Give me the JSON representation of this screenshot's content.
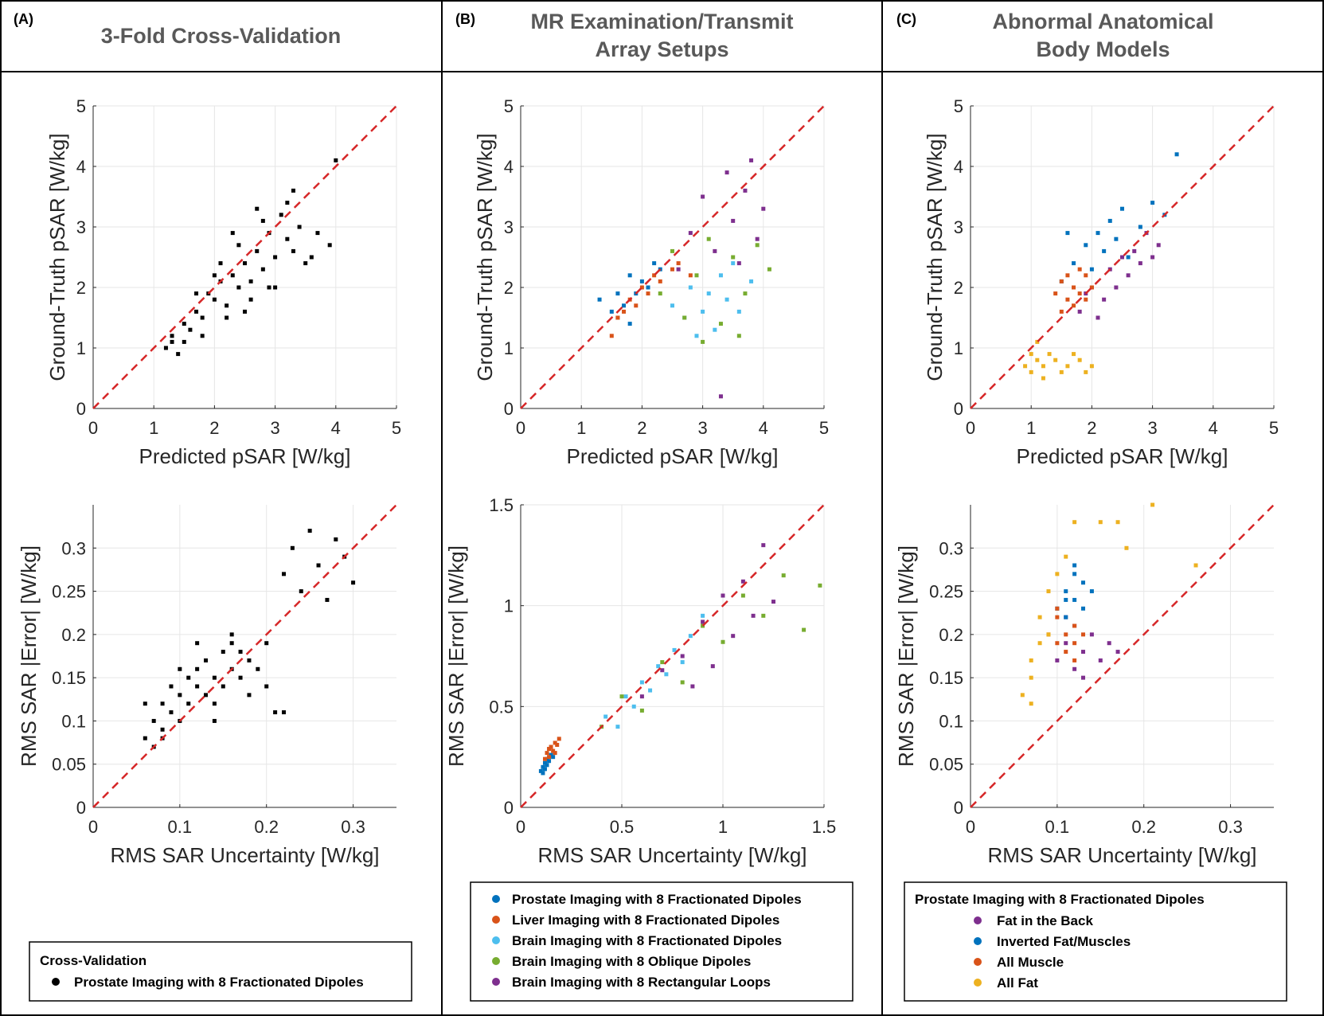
{
  "panels": [
    {
      "label": "(A)",
      "title": "3-Fold Cross-Validation"
    },
    {
      "label": "(B)",
      "title": "MR Examination/Transmit Array Setups"
    },
    {
      "label": "(C)",
      "title": "Abnormal Anatomical Body Models"
    }
  ],
  "chart_data": [
    {
      "type": "scatter",
      "xlabel": "Predicted pSAR [W/kg]",
      "ylabel": "Ground-Truth pSAR [W/kg]",
      "xlim": [
        0,
        5
      ],
      "ylim": [
        0,
        5
      ],
      "xticks": [
        0,
        1,
        2,
        3,
        4,
        5
      ],
      "yticks": [
        0,
        1,
        2,
        3,
        4,
        5
      ],
      "grid": true,
      "series": [
        {
          "color": "#000000",
          "x": [
            1.2,
            1.3,
            1.4,
            1.5,
            1.6,
            1.7,
            1.8,
            1.9,
            2.0,
            2.1,
            2.2,
            2.3,
            2.4,
            2.5,
            2.6,
            2.7,
            2.8,
            2.9,
            3.0,
            3.1,
            3.2,
            3.3,
            3.4,
            3.5,
            3.6,
            3.7,
            1.5,
            1.8,
            2.0,
            2.2,
            2.4,
            2.6,
            2.8,
            3.0,
            3.2,
            1.3,
            1.7,
            2.1,
            2.5,
            2.9,
            3.3,
            3.9,
            4.0,
            2.3,
            2.7
          ],
          "values": [
            1.0,
            1.1,
            0.9,
            1.4,
            1.3,
            1.6,
            1.5,
            1.9,
            1.8,
            2.1,
            1.7,
            2.2,
            2.0,
            2.4,
            2.1,
            2.6,
            2.3,
            2.9,
            2.5,
            3.2,
            2.8,
            2.6,
            3.0,
            2.4,
            2.5,
            2.9,
            1.1,
            1.2,
            2.2,
            1.5,
            2.7,
            1.8,
            3.1,
            2.0,
            3.4,
            1.2,
            1.9,
            2.4,
            1.6,
            2.0,
            3.6,
            2.7,
            4.1,
            2.9,
            3.3
          ]
        }
      ]
    },
    {
      "type": "scatter",
      "xlabel": "RMS SAR Uncertainty [W/kg]",
      "ylabel": "RMS SAR |Error| [W/kg]",
      "xlim": [
        0,
        0.35
      ],
      "ylim": [
        0,
        0.35
      ],
      "xticks": [
        0,
        0.1,
        0.2,
        0.3
      ],
      "yticks": [
        0,
        0.05,
        0.1,
        0.15,
        0.2,
        0.25,
        0.3
      ],
      "grid": true,
      "legend_title": "Cross-Validation",
      "series": [
        {
          "name": "Prostate Imaging with 8 Fractionated Dipoles",
          "color": "#000000",
          "x": [
            0.06,
            0.07,
            0.07,
            0.08,
            0.08,
            0.09,
            0.09,
            0.1,
            0.1,
            0.11,
            0.11,
            0.12,
            0.12,
            0.13,
            0.13,
            0.14,
            0.14,
            0.15,
            0.15,
            0.16,
            0.16,
            0.17,
            0.17,
            0.18,
            0.19,
            0.2,
            0.21,
            0.22,
            0.06,
            0.08,
            0.1,
            0.12,
            0.14,
            0.16,
            0.18,
            0.2,
            0.22,
            0.23,
            0.24,
            0.25,
            0.26,
            0.27,
            0.28,
            0.29,
            0.3
          ],
          "values": [
            0.08,
            0.1,
            0.07,
            0.12,
            0.09,
            0.11,
            0.14,
            0.1,
            0.13,
            0.15,
            0.12,
            0.14,
            0.16,
            0.13,
            0.17,
            0.15,
            0.12,
            0.18,
            0.14,
            0.16,
            0.19,
            0.15,
            0.18,
            0.17,
            0.16,
            0.14,
            0.11,
            0.11,
            0.12,
            0.08,
            0.16,
            0.19,
            0.1,
            0.2,
            0.13,
            0.19,
            0.27,
            0.3,
            0.25,
            0.32,
            0.28,
            0.24,
            0.31,
            0.29,
            0.26
          ]
        }
      ]
    },
    {
      "type": "scatter",
      "xlabel": "Predicted pSAR [W/kg]",
      "ylabel": "Ground-Truth pSAR [W/kg]",
      "xlim": [
        0,
        5
      ],
      "ylim": [
        0,
        5
      ],
      "xticks": [
        0,
        1,
        2,
        3,
        4,
        5
      ],
      "yticks": [
        0,
        1,
        2,
        3,
        4,
        5
      ],
      "grid": true,
      "series": [
        {
          "color": "#0072bd",
          "x": [
            1.3,
            1.5,
            1.6,
            1.7,
            1.8,
            1.9,
            2.0,
            2.1,
            2.2,
            1.6,
            1.8,
            2.3
          ],
          "values": [
            1.8,
            1.6,
            1.5,
            1.7,
            1.4,
            1.9,
            2.1,
            2.0,
            2.4,
            1.9,
            2.2,
            2.3
          ]
        },
        {
          "color": "#d95319",
          "x": [
            1.5,
            1.6,
            1.7,
            1.8,
            1.9,
            2.0,
            2.1,
            2.2,
            2.3,
            2.5,
            2.6,
            2.8
          ],
          "values": [
            1.2,
            1.5,
            1.6,
            1.8,
            1.7,
            2.0,
            1.9,
            2.2,
            2.1,
            2.3,
            2.4,
            2.2
          ]
        },
        {
          "color": "#4dbeee",
          "x": [
            2.5,
            2.7,
            2.8,
            2.9,
            3.0,
            3.1,
            3.2,
            3.3,
            3.4,
            3.5,
            3.6,
            3.8
          ],
          "values": [
            1.7,
            1.5,
            2.0,
            1.2,
            1.6,
            1.9,
            1.3,
            2.2,
            1.8,
            2.4,
            1.6,
            2.1
          ]
        },
        {
          "color": "#77ac30",
          "x": [
            2.3,
            2.5,
            2.7,
            2.9,
            3.1,
            3.3,
            3.5,
            3.7,
            3.9,
            4.1,
            3.0,
            3.6
          ],
          "values": [
            1.9,
            2.6,
            1.5,
            2.2,
            2.8,
            1.4,
            2.5,
            1.9,
            2.7,
            2.3,
            1.1,
            1.2
          ]
        },
        {
          "color": "#7e2f8e",
          "x": [
            2.6,
            2.8,
            3.0,
            3.2,
            3.4,
            3.5,
            3.6,
            3.7,
            3.8,
            3.9,
            4.0,
            3.3
          ],
          "values": [
            2.3,
            2.9,
            3.5,
            2.6,
            3.9,
            3.1,
            2.4,
            3.6,
            4.1,
            2.8,
            3.3,
            0.2
          ]
        }
      ]
    },
    {
      "type": "scatter",
      "xlabel": "RMS SAR Uncertainty [W/kg]",
      "ylabel": "RMS SAR |Error| [W/kg]",
      "xlim": [
        0,
        1.5
      ],
      "ylim": [
        0,
        1.5
      ],
      "xticks": [
        0,
        0.5,
        1,
        1.5
      ],
      "yticks": [
        0,
        0.5,
        1,
        1.5
      ],
      "grid": true,
      "series": [
        {
          "name": "Prostate Imaging with 8 Fractionated Dipoles",
          "color": "#0072bd",
          "x": [
            0.1,
            0.11,
            0.12,
            0.12,
            0.13,
            0.14,
            0.15,
            0.11,
            0.13,
            0.16
          ],
          "values": [
            0.18,
            0.2,
            0.22,
            0.19,
            0.24,
            0.23,
            0.26,
            0.17,
            0.21,
            0.25
          ]
        },
        {
          "name": "Liver Imaging with 8 Fractionated Dipoles",
          "color": "#d95319",
          "x": [
            0.12,
            0.13,
            0.14,
            0.15,
            0.16,
            0.17,
            0.18,
            0.19,
            0.14,
            0.17
          ],
          "values": [
            0.24,
            0.27,
            0.25,
            0.3,
            0.28,
            0.32,
            0.31,
            0.34,
            0.29,
            0.27
          ]
        },
        {
          "name": "Brain Imaging with 8 Fractionated Dipoles",
          "color": "#4dbeee",
          "x": [
            0.42,
            0.48,
            0.52,
            0.56,
            0.6,
            0.64,
            0.68,
            0.72,
            0.76,
            0.8,
            0.84,
            0.9
          ],
          "values": [
            0.45,
            0.4,
            0.55,
            0.5,
            0.62,
            0.58,
            0.7,
            0.66,
            0.78,
            0.72,
            0.85,
            0.95
          ]
        },
        {
          "name": "Brain Imaging with 8 Oblique Dipoles",
          "color": "#77ac30",
          "x": [
            0.4,
            0.5,
            0.6,
            0.7,
            0.8,
            0.9,
            1.0,
            1.1,
            1.2,
            1.3,
            1.4,
            1.48
          ],
          "values": [
            0.4,
            0.55,
            0.48,
            0.72,
            0.62,
            0.9,
            0.82,
            1.05,
            0.95,
            1.15,
            0.88,
            1.1
          ]
        },
        {
          "name": "Brain Imaging with 8 Rectangular Loops",
          "color": "#7e2f8e",
          "x": [
            0.6,
            0.7,
            0.8,
            0.85,
            0.9,
            0.95,
            1.0,
            1.05,
            1.1,
            1.15,
            1.2,
            1.25
          ],
          "values": [
            0.55,
            0.68,
            0.75,
            0.6,
            0.92,
            0.7,
            1.05,
            0.85,
            1.12,
            0.95,
            1.3,
            1.02
          ]
        }
      ]
    },
    {
      "type": "scatter",
      "xlabel": "Predicted pSAR [W/kg]",
      "ylabel": "Ground-Truth pSAR [W/kg]",
      "xlim": [
        0,
        5
      ],
      "ylim": [
        0,
        5
      ],
      "xticks": [
        0,
        1,
        2,
        3,
        4,
        5
      ],
      "yticks": [
        0,
        1,
        2,
        3,
        4,
        5
      ],
      "grid": true,
      "series": [
        {
          "color": "#7e2f8e",
          "x": [
            1.8,
            2.0,
            2.2,
            2.3,
            2.4,
            2.5,
            2.6,
            2.7,
            2.8,
            2.9,
            3.0,
            3.1,
            2.1,
            1.9
          ],
          "values": [
            1.6,
            2.0,
            1.8,
            2.3,
            2.0,
            2.5,
            2.2,
            2.6,
            2.4,
            2.9,
            2.5,
            2.7,
            1.5,
            1.9
          ]
        },
        {
          "color": "#0072bd",
          "x": [
            1.5,
            1.7,
            1.9,
            2.0,
            2.1,
            2.2,
            2.3,
            2.4,
            2.5,
            2.6,
            2.8,
            3.0,
            3.2,
            3.4,
            1.6
          ],
          "values": [
            2.1,
            2.4,
            2.7,
            2.3,
            2.9,
            2.6,
            3.1,
            2.8,
            3.3,
            2.5,
            3.0,
            3.4,
            3.2,
            4.2,
            2.9
          ]
        },
        {
          "color": "#d95319",
          "x": [
            1.4,
            1.5,
            1.6,
            1.6,
            1.7,
            1.7,
            1.8,
            1.8,
            1.9,
            2.0,
            1.5,
            1.9
          ],
          "values": [
            1.9,
            2.1,
            1.8,
            2.2,
            1.7,
            2.0,
            1.9,
            2.3,
            1.8,
            2.0,
            1.6,
            2.2
          ]
        },
        {
          "color": "#edb120",
          "x": [
            0.9,
            1.0,
            1.0,
            1.1,
            1.1,
            1.2,
            1.2,
            1.3,
            1.4,
            1.5,
            1.6,
            1.7,
            1.8,
            1.9,
            2.0
          ],
          "values": [
            0.7,
            0.6,
            0.9,
            0.8,
            1.1,
            0.7,
            0.5,
            0.9,
            0.8,
            0.6,
            0.7,
            0.9,
            0.8,
            0.6,
            0.7
          ]
        }
      ]
    },
    {
      "type": "scatter",
      "xlabel": "RMS SAR Uncertainty [W/kg]",
      "ylabel": "RMS SAR |Error| [W/kg]",
      "xlim": [
        0,
        0.35
      ],
      "ylim": [
        0,
        0.35
      ],
      "xticks": [
        0,
        0.1,
        0.2,
        0.3
      ],
      "yticks": [
        0,
        0.05,
        0.1,
        0.15,
        0.2,
        0.25,
        0.3
      ],
      "grid": true,
      "legend_title": "Prostate Imaging with 8 Fractionated Dipoles",
      "series": [
        {
          "name": "Fat in the Back",
          "color": "#7e2f8e",
          "x": [
            0.1,
            0.11,
            0.12,
            0.12,
            0.13,
            0.14,
            0.15,
            0.16,
            0.17,
            0.11,
            0.13
          ],
          "values": [
            0.17,
            0.19,
            0.16,
            0.21,
            0.18,
            0.2,
            0.17,
            0.19,
            0.18,
            0.22,
            0.15
          ]
        },
        {
          "name": "Inverted Fat/Muscles",
          "color": "#0072bd",
          "x": [
            0.1,
            0.11,
            0.11,
            0.12,
            0.12,
            0.13,
            0.13,
            0.14,
            0.12,
            0.11
          ],
          "values": [
            0.23,
            0.25,
            0.22,
            0.27,
            0.24,
            0.26,
            0.23,
            0.25,
            0.28,
            0.24
          ]
        },
        {
          "name": "All Muscle",
          "color": "#d95319",
          "x": [
            0.09,
            0.1,
            0.1,
            0.11,
            0.11,
            0.12,
            0.12,
            0.13,
            0.1,
            0.12
          ],
          "values": [
            0.2,
            0.19,
            0.22,
            0.2,
            0.18,
            0.21,
            0.19,
            0.2,
            0.23,
            0.17
          ]
        },
        {
          "name": "All Fat",
          "color": "#edb120",
          "x": [
            0.06,
            0.07,
            0.07,
            0.08,
            0.08,
            0.09,
            0.09,
            0.1,
            0.11,
            0.12,
            0.15,
            0.18,
            0.21,
            0.26,
            0.07,
            0.17
          ],
          "values": [
            0.13,
            0.17,
            0.12,
            0.19,
            0.22,
            0.2,
            0.25,
            0.27,
            0.29,
            0.33,
            0.33,
            0.3,
            0.35,
            0.28,
            0.15,
            0.33
          ]
        }
      ]
    }
  ]
}
